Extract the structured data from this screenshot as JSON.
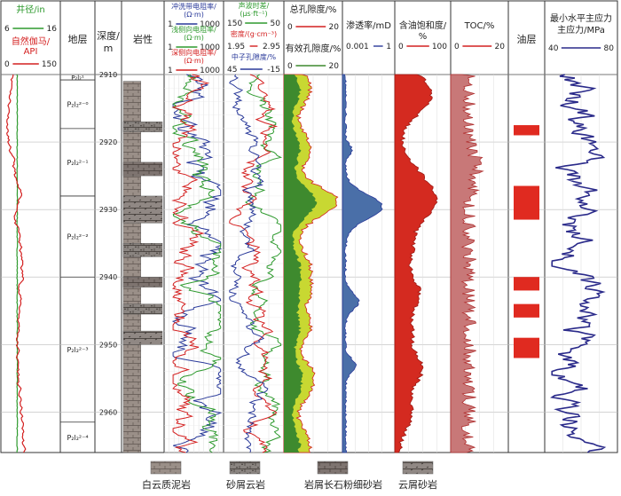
{
  "chart_data": {
    "type": "well-log",
    "depth_axis": {
      "label": "深度/m",
      "range": [
        2910,
        2966
      ],
      "ticks": [
        2910,
        2920,
        2930,
        2940,
        2950,
        2960
      ]
    },
    "tracks": {
      "caliper_gr": {
        "caliper": {
          "label": "井径/in",
          "min": 6,
          "max": 16,
          "color": "#2e9a2e"
        },
        "gr": {
          "label": "自然伽马/API",
          "min": 0,
          "max": 150,
          "color": "#d42020"
        }
      },
      "strata": {
        "header": "地层",
        "zones": [
          {
            "label": "P₂l₂¹",
            "top": 2910,
            "bottom": 2910.8
          },
          {
            "label": "P₂l₂²⁻⁰",
            "top": 2910.8,
            "bottom": 2918
          },
          {
            "label": "P₂l₂²⁻¹",
            "top": 2918,
            "bottom": 2928
          },
          {
            "label": "P₂l₂²⁻²",
            "top": 2928,
            "bottom": 2940
          },
          {
            "label": "P₂l₂²⁻³",
            "top": 2940,
            "bottom": 2961.5
          },
          {
            "label": "P₂l₂²⁻⁴",
            "top": 2961.5,
            "bottom": 2966
          }
        ]
      },
      "lithology": {
        "header": "岩性"
      },
      "resistivity": {
        "shallow_flush": {
          "label": "冲洗带电阻率/(Ω·m)",
          "min": "1",
          "max": "1000",
          "color": "#2a3a9a"
        },
        "medium": {
          "label": "浅侧向电阻率/(Ω·m)",
          "min": "1",
          "max": "1000",
          "color": "#2e9a2e"
        },
        "deep": {
          "label": "深侧向电阻率/(Ω·m)",
          "min": "1",
          "max": "1000",
          "color": "#d42020"
        }
      },
      "porosity_logs": {
        "sonic": {
          "label": "声波时差/(μs·ft⁻¹)",
          "min": "150",
          "max": "50",
          "color": "#2e9a2e"
        },
        "density": {
          "label": "密度/(g·cm⁻³)",
          "min": "1.95",
          "max": "2.95",
          "color": "#d42020"
        },
        "neutron": {
          "label": "中子孔隙度/%",
          "min": "45",
          "max": "-15",
          "color": "#2a3a9a"
        }
      },
      "porosity": {
        "total": {
          "label": "总孔隙度/%",
          "min": "0",
          "max": "20",
          "color": "#c8d832"
        },
        "effective": {
          "label": "有效孔隙度/%",
          "min": "0",
          "max": "20",
          "color": "#3e8a2e"
        }
      },
      "permeability": {
        "label": "渗透率/mD",
        "min": "0.001",
        "max": "1",
        "color": "#4a6fa8"
      },
      "oil_saturation": {
        "label": "含油饱和度/%",
        "min": "0",
        "max": "100",
        "color": "#d42a20"
      },
      "toc": {
        "label": "TOC/%",
        "min": "0",
        "max": "20",
        "color": "#c87878"
      },
      "oil_layers": {
        "header": "油层",
        "color": "#e02a20",
        "intervals": [
          [
            2917.5,
            2919
          ],
          [
            2926.5,
            2931.5
          ],
          [
            2940,
            2942
          ],
          [
            2944,
            2946
          ],
          [
            2949,
            2952
          ]
        ]
      },
      "stress": {
        "label": "最小水平主应力/MPa",
        "min": "40",
        "max": "80",
        "color": "#2a2a8a"
      }
    },
    "legend": [
      {
        "label": "白云质泥岩",
        "pattern": "dolomitic-mudstone"
      },
      {
        "label": "砂屑云岩",
        "pattern": "sandy-dolomite"
      },
      {
        "label": "岩屑长石粉细砂岩",
        "pattern": "lithic-feldspar-siltstone"
      },
      {
        "label": "云屑砂岩",
        "pattern": "dolomite-clastic-sandstone"
      }
    ],
    "gridlines": true
  }
}
